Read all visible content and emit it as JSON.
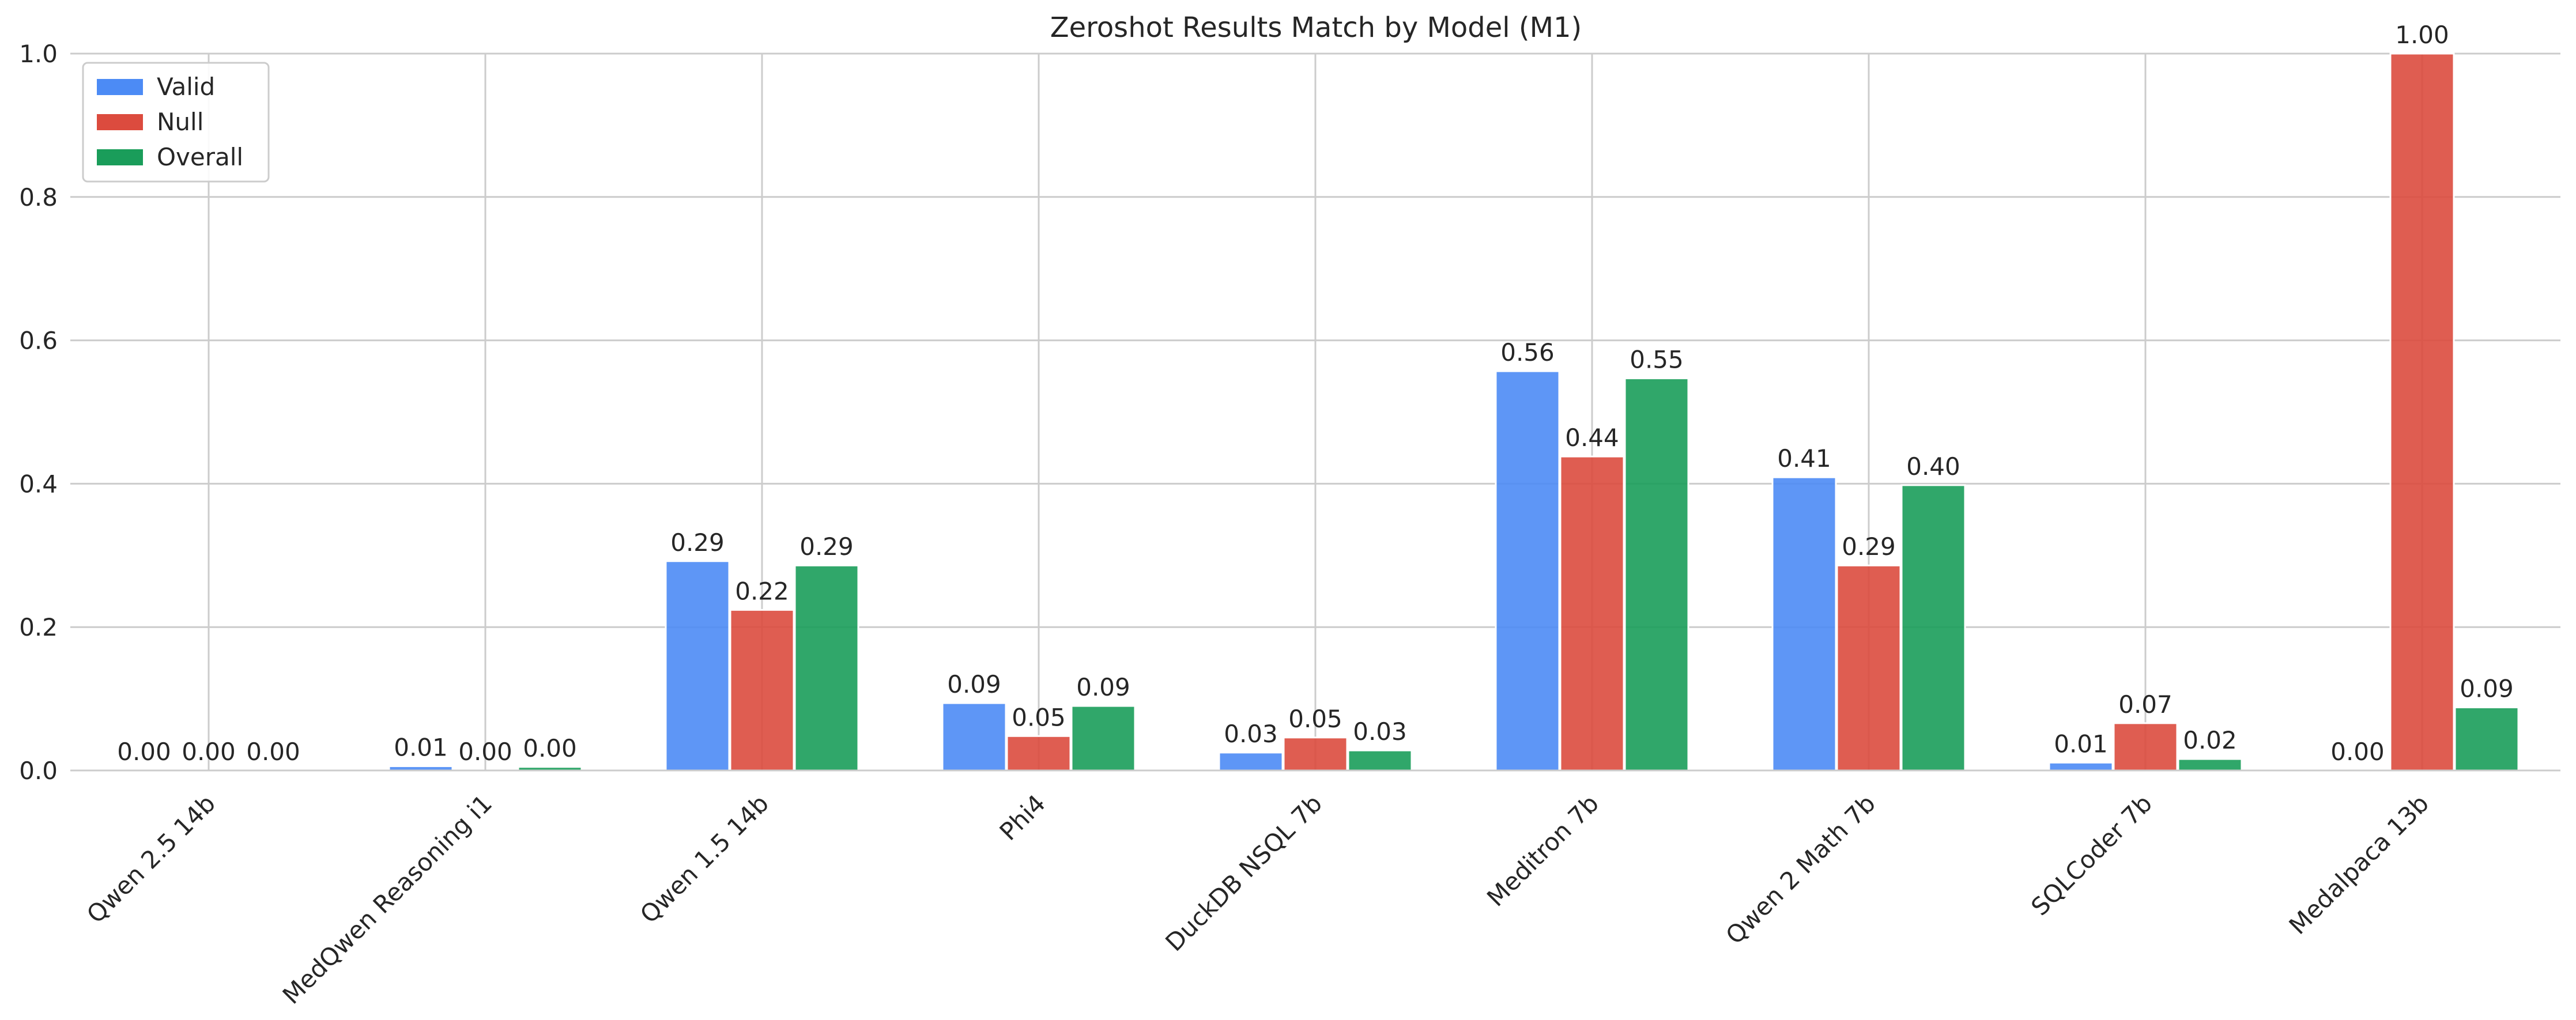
{
  "chart_data": {
    "type": "bar",
    "title": "Zeroshot Results Match by Model (M1)",
    "xlabel": "",
    "ylabel": "",
    "ylim": [
      0,
      1.0
    ],
    "yticks": [
      0.0,
      0.2,
      0.4,
      0.6,
      0.8,
      1.0
    ],
    "ytick_labels": [
      "0.0",
      "0.2",
      "0.4",
      "0.6",
      "0.8",
      "1.0"
    ],
    "grid": true,
    "legend_position": "top-left",
    "categories": [
      "Qwen 2.5 14b",
      "MedQwen Reasoning i1",
      "Qwen 1.5 14b",
      "Phi4",
      "DuckDB NSQL 7b",
      "Meditron 7b",
      "Qwen 2 Math 7b",
      "SQLCoder 7b",
      "Medalpaca 13b"
    ],
    "series": [
      {
        "name": "Valid",
        "color": "#4c8bf5",
        "values": [
          0.0,
          0.006,
          0.292,
          0.094,
          0.025,
          0.557,
          0.409,
          0.011,
          0.0
        ],
        "labels": [
          "0.00",
          "0.01",
          "0.29",
          "0.09",
          "0.03",
          "0.56",
          "0.41",
          "0.01",
          "0.00"
        ]
      },
      {
        "name": "Null",
        "color": "#dc4b3e",
        "values": [
          0.0,
          0.0,
          0.224,
          0.048,
          0.046,
          0.438,
          0.286,
          0.066,
          1.0
        ],
        "labels": [
          "0.00",
          "0.00",
          "0.22",
          "0.05",
          "0.05",
          "0.44",
          "0.29",
          "0.07",
          "1.00"
        ]
      },
      {
        "name": "Overall",
        "color": "#1a9d5a",
        "values": [
          0.0,
          0.005,
          0.286,
          0.09,
          0.028,
          0.547,
          0.398,
          0.016,
          0.088
        ],
        "labels": [
          "0.00",
          "0.00",
          "0.29",
          "0.09",
          "0.03",
          "0.55",
          "0.40",
          "0.02",
          "0.09"
        ]
      }
    ]
  }
}
